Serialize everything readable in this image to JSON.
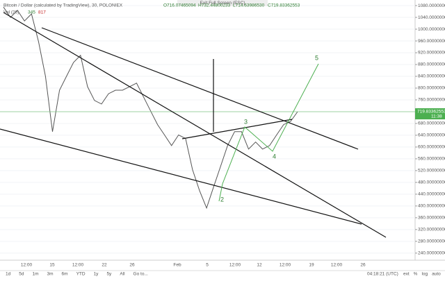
{
  "header": {
    "exit": "Exit Full Screen (ESC)",
    "symbol": "Bitcoin / Dollar (calculated by TradingView), 30, POLONIEX",
    "open": "O716.07465094",
    "high": "H732.44800233",
    "low": "L714.63986530",
    "close": "C719.83362553",
    "volume": "Vol (20)",
    "vol1": "345",
    "vol2": "817"
  },
  "chart_data": {
    "type": "line",
    "color": "#555555",
    "values": [
      1075,
      1040,
      1064,
      1028,
      1052,
      958,
      840,
      652,
      793,
      840,
      887,
      911,
      805,
      758,
      746,
      781,
      793,
      793,
      805,
      817,
      770,
      723,
      676,
      641,
      605,
      641,
      629,
      523,
      452,
      393,
      464,
      534,
      605,
      652,
      652,
      593,
      617,
      593,
      605,
      641,
      676,
      687,
      719.83362553
    ],
    "ylim": [
      216,
      1099
    ],
    "yticks": [
      {
        "value": 1080,
        "label": "1080.00000000"
      },
      {
        "value": 1040,
        "label": "1040.00000000"
      },
      {
        "value": 1000,
        "label": "1000.00000000"
      },
      {
        "value": 960,
        "label": "960.00000000"
      },
      {
        "value": 920,
        "label": "920.00000000"
      },
      {
        "value": 880,
        "label": "880.00000000"
      },
      {
        "value": 840,
        "label": "840.00000000"
      },
      {
        "value": 800,
        "label": "800.00000000"
      },
      {
        "value": 760,
        "label": "760.00000000"
      },
      {
        "value": 720,
        "label": "720.00000000"
      },
      {
        "value": 680,
        "label": "680.00000000"
      },
      {
        "value": 640,
        "label": "640.00000000"
      },
      {
        "value": 600,
        "label": "600.00000000"
      },
      {
        "value": 560,
        "label": "560.00000000"
      },
      {
        "value": 520,
        "label": "520.00000000"
      },
      {
        "value": 480,
        "label": "480.00000000"
      },
      {
        "value": 440,
        "label": "440.00000000"
      },
      {
        "value": 400,
        "label": "400.00000000"
      },
      {
        "value": 360,
        "label": "360.00000000"
      },
      {
        "value": 320,
        "label": "320.00000000"
      },
      {
        "value": 280,
        "label": "280.00000000"
      },
      {
        "value": 240,
        "label": "240.00000000"
      }
    ],
    "last_price": {
      "value": 719.83362553,
      "label": "719.83362553"
    },
    "last_time": "11:38",
    "xlabels": [
      "12:00",
      "15",
      "12:00",
      "22",
      "26",
      "Feb",
      "5",
      "12:00",
      "12",
      "12:00",
      "19",
      "12:00",
      "26"
    ],
    "waves": [
      "2",
      "3",
      "4",
      "5"
    ]
  },
  "toolbar": {
    "ranges": [
      "1d",
      "5d",
      "1m",
      "3m",
      "6m",
      "YTD",
      "1y",
      "5y",
      "All",
      "Go to..."
    ],
    "time": "04:18:21 (UTC)",
    "options": [
      "ext",
      "%",
      "log",
      "auto"
    ]
  }
}
